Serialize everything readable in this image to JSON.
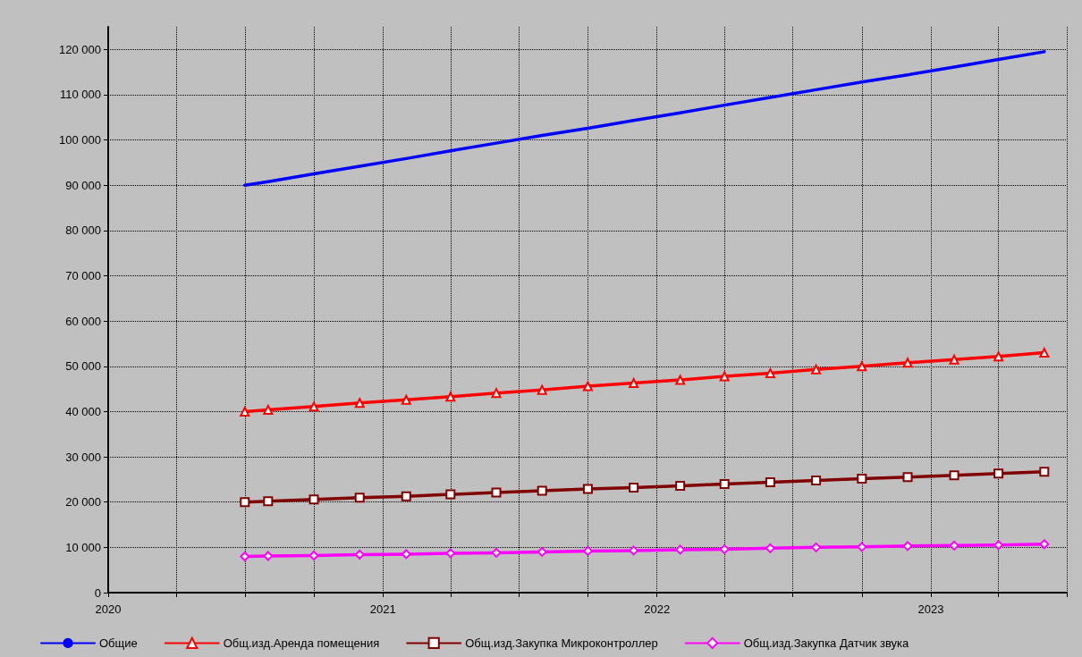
{
  "chart_data": {
    "type": "line",
    "x": [
      "2020-07",
      "2020-08",
      "2020-10",
      "2020-12",
      "2021-02",
      "2021-04",
      "2021-06",
      "2021-08",
      "2021-10",
      "2021-12",
      "2022-02",
      "2022-04",
      "2022-06",
      "2022-08",
      "2022-10",
      "2022-12",
      "2023-02",
      "2023-04",
      "2023-06"
    ],
    "series": [
      {
        "name": "Общие",
        "color": "#0000ff",
        "marker": "none",
        "values": [
          90000,
          90800,
          92500,
          94200,
          95900,
          97600,
          99300,
          101000,
          102600,
          104300,
          106000,
          107700,
          109400,
          111100,
          112800,
          114400,
          116100,
          117800,
          119500
        ]
      },
      {
        "name": "Общ.изд.Аренда помещения",
        "color": "#ff0000",
        "marker": "triangle",
        "values": [
          40000,
          40400,
          41100,
          41900,
          42600,
          43300,
          44100,
          44800,
          45600,
          46300,
          47000,
          47800,
          48500,
          49300,
          50000,
          50800,
          51500,
          52200,
          53000
        ]
      },
      {
        "name": "Общ.изд.Закупка Микроконтроллер",
        "color": "#800000",
        "marker": "square",
        "values": [
          20000,
          20200,
          20600,
          21000,
          21300,
          21700,
          22100,
          22500,
          22900,
          23200,
          23600,
          24000,
          24400,
          24800,
          25200,
          25500,
          25900,
          26300,
          26700
        ]
      },
      {
        "name": "Общ.изд.Закупка Датчик звука",
        "color": "#ff00ff",
        "marker": "diamond",
        "values": [
          8000,
          8100,
          8200,
          8400,
          8500,
          8700,
          8800,
          9000,
          9200,
          9300,
          9500,
          9600,
          9800,
          10000,
          10100,
          10300,
          10400,
          10500,
          10700
        ]
      }
    ],
    "xlim": [
      "2020-01",
      "2023-07"
    ],
    "xticks": [
      {
        "value": "2020-01",
        "label": "2020"
      },
      {
        "value": "2020-04",
        "label": null
      },
      {
        "value": "2020-07",
        "label": null
      },
      {
        "value": "2020-10",
        "label": null
      },
      {
        "value": "2021-01",
        "label": "2021"
      },
      {
        "value": "2021-04",
        "label": null
      },
      {
        "value": "2021-07",
        "label": null
      },
      {
        "value": "2021-10",
        "label": null
      },
      {
        "value": "2022-01",
        "label": "2022"
      },
      {
        "value": "2022-04",
        "label": null
      },
      {
        "value": "2022-07",
        "label": null
      },
      {
        "value": "2022-10",
        "label": null
      },
      {
        "value": "2023-01",
        "label": "2023"
      },
      {
        "value": "2023-04",
        "label": null
      },
      {
        "value": "2023-07",
        "label": null
      }
    ],
    "ylim": [
      0,
      125000
    ],
    "yticks": [
      0,
      {
        "value": 10000,
        "label": "10 000"
      },
      {
        "value": 20000,
        "label": "20 000"
      },
      {
        "value": 30000,
        "label": "30 000"
      },
      {
        "value": 40000,
        "label": "40 000"
      },
      {
        "value": 50000,
        "label": "50 000"
      },
      {
        "value": 60000,
        "label": "60 000"
      },
      {
        "value": 70000,
        "label": "70 000"
      },
      {
        "value": 80000,
        "label": "80 000"
      },
      {
        "value": 90000,
        "label": "90 000"
      },
      {
        "value": 100000,
        "label": "100 000"
      },
      {
        "value": 110000,
        "label": "110 000"
      },
      {
        "value": 120000,
        "label": "120 000"
      }
    ],
    "grid": true,
    "legend": "bottom",
    "line_style": "solid"
  }
}
